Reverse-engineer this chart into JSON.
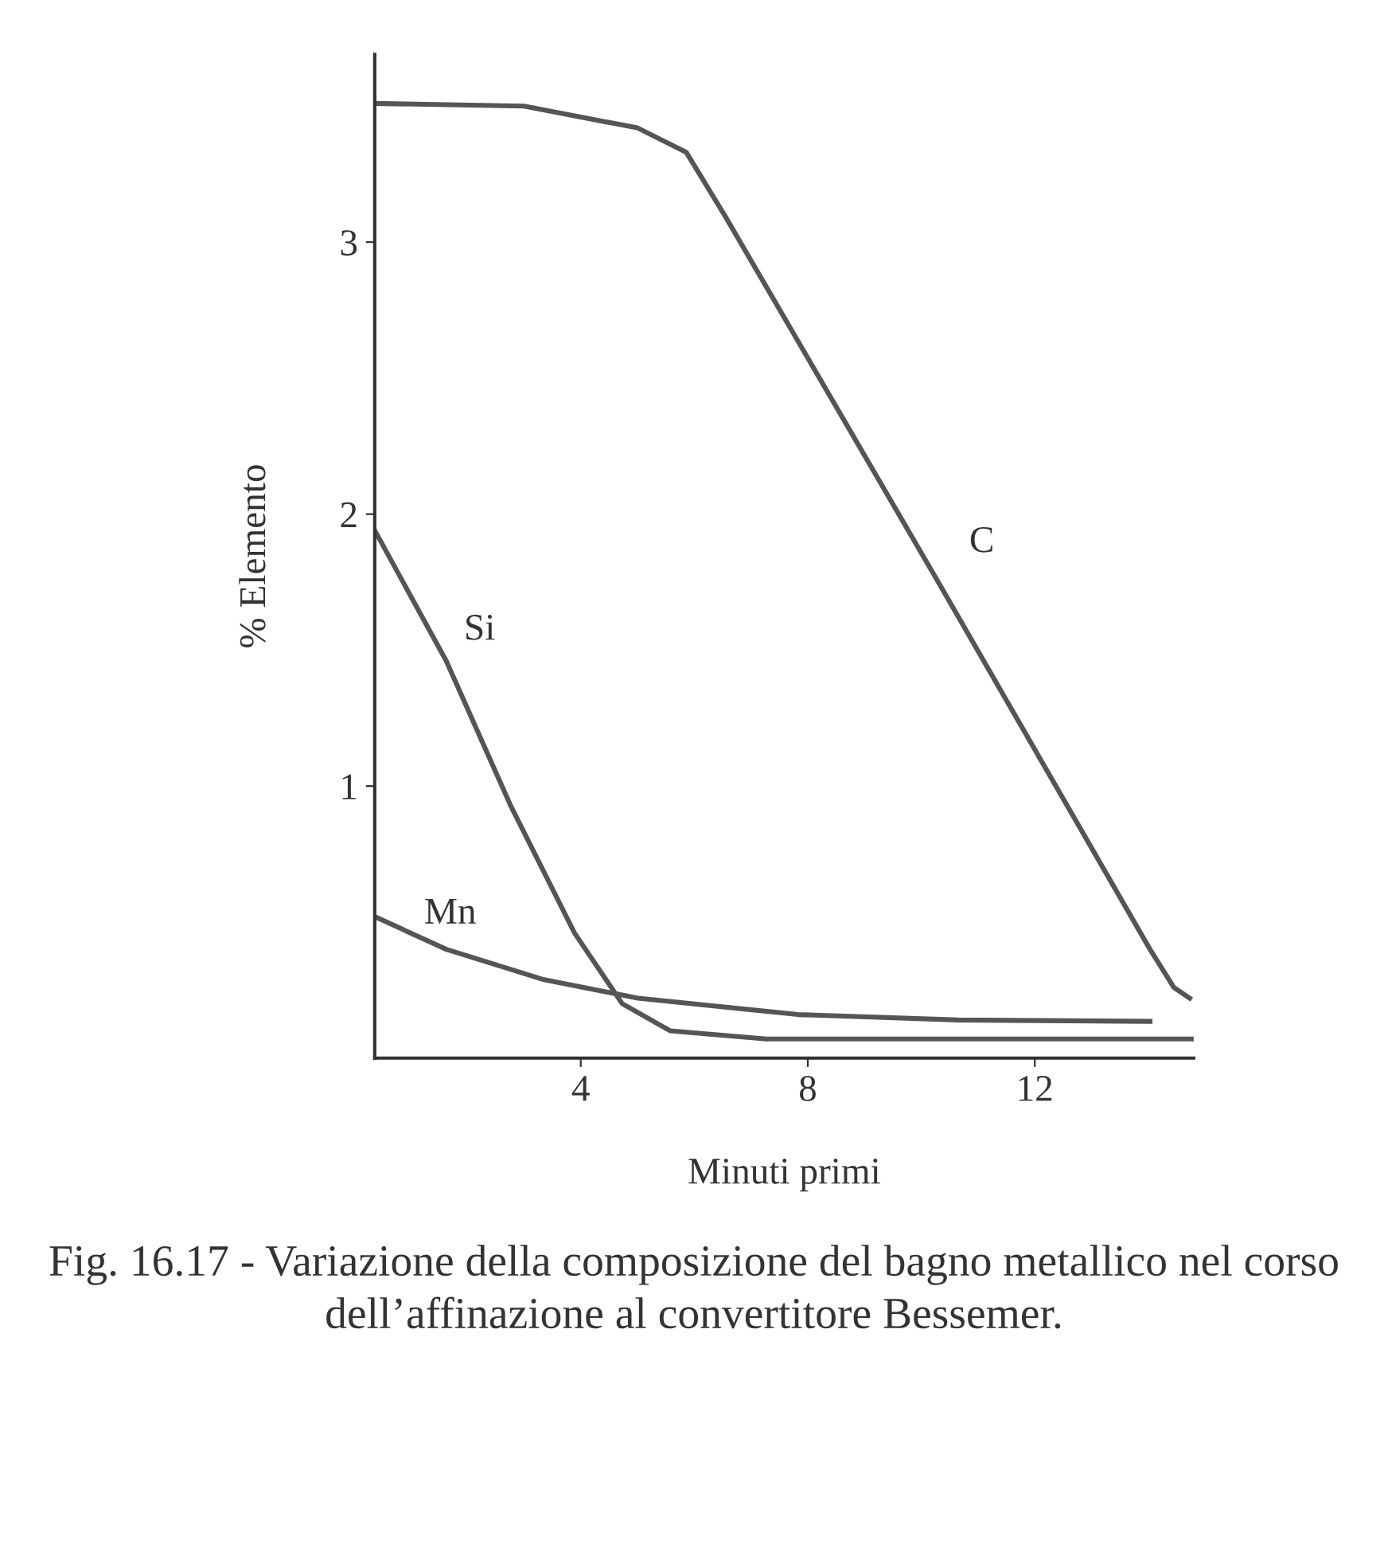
{
  "chart_data": {
    "type": "line",
    "xlabel": "Minuti primi",
    "ylabel": "% Elemento",
    "xlim": [
      0.37,
      14.8
    ],
    "ylim": [
      0,
      3.69
    ],
    "xticks": [
      4,
      8,
      12
    ],
    "yticks": [
      1,
      2,
      3
    ],
    "grid": false,
    "legend": false,
    "marker": "none",
    "line_style": "solid",
    "series": [
      {
        "name": "C",
        "color": "#555555",
        "x": [
          0.37,
          3.0,
          5.0,
          5.86,
          6.56,
          10.3,
          14.03,
          14.45,
          14.73
        ],
        "values": [
          3.51,
          3.5,
          3.42,
          3.33,
          3.09,
          1.75,
          0.4,
          0.26,
          0.22
        ]
      },
      {
        "name": "Si",
        "color": "#555555",
        "x": [
          0.37,
          1.63,
          2.76,
          3.89,
          4.73,
          5.58,
          7.27,
          14.8
        ],
        "values": [
          1.94,
          1.46,
          0.93,
          0.46,
          0.2,
          0.1,
          0.07,
          0.07
        ]
      },
      {
        "name": "Mn",
        "color": "#555555",
        "x": [
          0.37,
          1.63,
          3.32,
          5.01,
          7.83,
          10.65,
          14.03
        ],
        "values": [
          0.52,
          0.4,
          0.29,
          0.22,
          0.16,
          0.14,
          0.135
        ]
      }
    ],
    "annotations": [
      "Fig. 16.17 - Variazione della composizione del bagno metallico nel corso dell’affinazione al convertitore Bessemer."
    ]
  }
}
